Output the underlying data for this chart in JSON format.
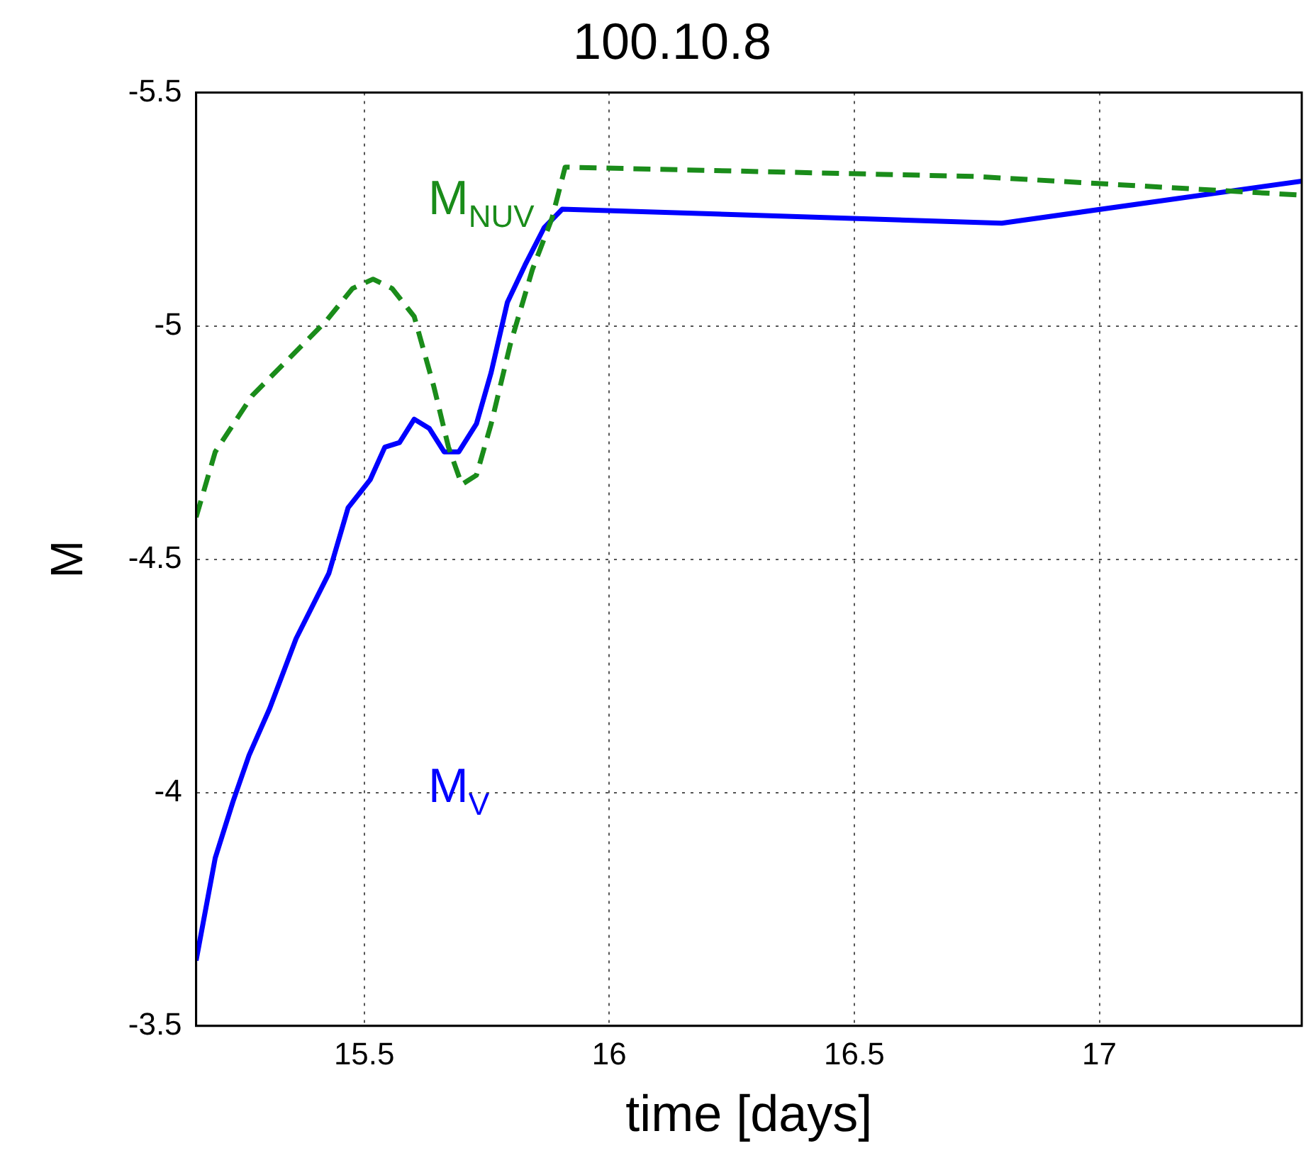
{
  "chart_data": {
    "type": "line",
    "title": "100.10.8",
    "xlabel": "time [days]",
    "ylabel": "M",
    "xlim": [
      15.157,
      17.413
    ],
    "xticks": [
      15.5,
      16,
      16.5,
      17
    ],
    "ylim": [
      -3.5,
      -5.5
    ],
    "yticks": [
      -5.5,
      -5,
      -4.5,
      -4,
      -3.5
    ],
    "grid": true,
    "legend": false,
    "marker": "none",
    "series": [
      {
        "name": "M$_{NUV}$",
        "color": "#1a8c1a",
        "line_style": "dashed",
        "x": [
          15.157,
          15.196,
          15.271,
          15.422,
          15.476,
          15.518,
          15.557,
          15.602,
          15.642,
          15.672,
          15.699,
          15.729,
          15.759,
          15.798,
          15.843,
          15.883,
          15.91,
          16.747,
          17.413
        ],
        "values": [
          -4.59,
          -4.73,
          -4.85,
          -5.01,
          -5.08,
          -5.1,
          -5.08,
          -5.02,
          -4.87,
          -4.74,
          -4.66,
          -4.68,
          -4.79,
          -4.96,
          -5.12,
          -5.23,
          -5.34,
          -5.32,
          -5.28
        ]
      },
      {
        "name": "M$_{V}$",
        "color": "#0000ff",
        "line_style": "solid",
        "x": [
          15.157,
          15.196,
          15.232,
          15.265,
          15.307,
          15.361,
          15.428,
          15.467,
          15.512,
          15.542,
          15.572,
          15.602,
          15.633,
          15.663,
          15.693,
          15.729,
          15.759,
          15.792,
          15.828,
          15.867,
          15.904,
          16.801,
          17.413
        ],
        "values": [
          -3.64,
          -3.86,
          -3.98,
          -4.08,
          -4.18,
          -4.33,
          -4.47,
          -4.61,
          -4.67,
          -4.74,
          -4.75,
          -4.8,
          -4.78,
          -4.73,
          -4.73,
          -4.79,
          -4.9,
          -5.05,
          -5.13,
          -5.21,
          -5.25,
          -5.22,
          -5.31
        ]
      }
    ]
  }
}
